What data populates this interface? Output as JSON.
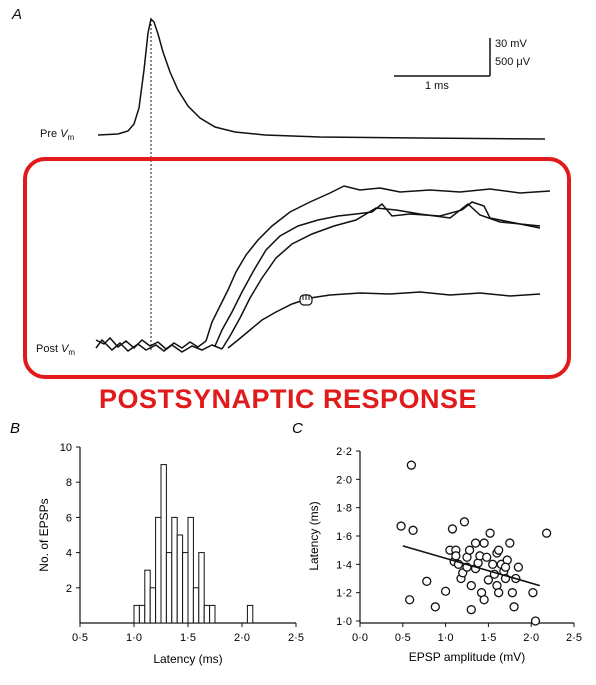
{
  "panel_a": {
    "letter": "A",
    "pre_label_main": "Pre",
    "pre_label_v": "V",
    "pre_label_sub": "m",
    "post_label_main": "Post",
    "post_label_v": "V",
    "post_label_sub": "m",
    "scale_voltage_1": "30 mV",
    "scale_voltage_2": "500 μV",
    "scale_time": "1 ms",
    "highlight_caption": "POSTSYNAPTIC RESPONSE",
    "highlight_color": "#e11b1b",
    "cursor_icon": "hand-grab-icon"
  },
  "chart_data": [
    {
      "panel": "B",
      "type": "bar",
      "xlabel": "Latency (ms)",
      "ylabel": "No. of EPSPs",
      "xlim": [
        0.5,
        2.5
      ],
      "ylim": [
        0,
        10
      ],
      "xticks": [
        "0·5",
        "1·0",
        "1·5",
        "2·0",
        "2·5"
      ],
      "yticks": [
        "2",
        "4",
        "6",
        "8",
        "10"
      ],
      "bin_width": 0.05,
      "bin_starts": [
        1.0,
        1.05,
        1.1,
        1.15,
        1.2,
        1.25,
        1.3,
        1.35,
        1.4,
        1.45,
        1.5,
        1.55,
        1.6,
        1.65,
        1.7,
        2.05
      ],
      "counts": [
        1,
        1,
        3,
        2,
        6,
        9,
        4,
        6,
        5,
        4,
        6,
        2,
        4,
        1,
        1,
        1
      ]
    },
    {
      "panel": "C",
      "type": "scatter",
      "xlabel": "EPSP amplitude (mV)",
      "ylabel": "Latency (ms)",
      "xlim": [
        0.0,
        2.5
      ],
      "ylim": [
        1.0,
        2.2
      ],
      "xticks": [
        "0·0",
        "0·5",
        "1·0",
        "1·5",
        "2·0",
        "2·5"
      ],
      "yticks": [
        "1·0",
        "1·2",
        "1·4",
        "1·6",
        "1·8",
        "2·0",
        "2·2"
      ],
      "points": [
        [
          0.6,
          2.1
        ],
        [
          0.48,
          1.67
        ],
        [
          0.62,
          1.64
        ],
        [
          0.58,
          1.15
        ],
        [
          0.78,
          1.28
        ],
        [
          0.88,
          1.1
        ],
        [
          1.0,
          1.21
        ],
        [
          1.05,
          1.5
        ],
        [
          1.08,
          1.65
        ],
        [
          1.1,
          1.42
        ],
        [
          1.12,
          1.5
        ],
        [
          1.15,
          1.4
        ],
        [
          1.18,
          1.3
        ],
        [
          1.2,
          1.34
        ],
        [
          1.22,
          1.7
        ],
        [
          1.25,
          1.45
        ],
        [
          1.28,
          1.5
        ],
        [
          1.3,
          1.25
        ],
        [
          1.3,
          1.08
        ],
        [
          1.35,
          1.37
        ],
        [
          1.38,
          1.41
        ],
        [
          1.4,
          1.46
        ],
        [
          1.42,
          1.2
        ],
        [
          1.45,
          1.55
        ],
        [
          1.48,
          1.45
        ],
        [
          1.5,
          1.29
        ],
        [
          1.52,
          1.62
        ],
        [
          1.55,
          1.4
        ],
        [
          1.57,
          1.33
        ],
        [
          1.6,
          1.25
        ],
        [
          1.6,
          1.48
        ],
        [
          1.62,
          1.2
        ],
        [
          1.65,
          1.4
        ],
        [
          1.68,
          1.35
        ],
        [
          1.7,
          1.3
        ],
        [
          1.72,
          1.43
        ],
        [
          1.75,
          1.55
        ],
        [
          1.78,
          1.2
        ],
        [
          1.8,
          1.1
        ],
        [
          1.82,
          1.3
        ],
        [
          1.85,
          1.38
        ],
        [
          2.02,
          1.2
        ],
        [
          2.05,
          1.0
        ],
        [
          2.18,
          1.62
        ],
        [
          1.25,
          1.38
        ],
        [
          1.45,
          1.15
        ],
        [
          1.12,
          1.46
        ],
        [
          1.7,
          1.38
        ],
        [
          1.35,
          1.55
        ],
        [
          1.62,
          1.5
        ]
      ],
      "regression": {
        "x": [
          0.5,
          2.1
        ],
        "y": [
          1.53,
          1.25
        ]
      }
    }
  ]
}
